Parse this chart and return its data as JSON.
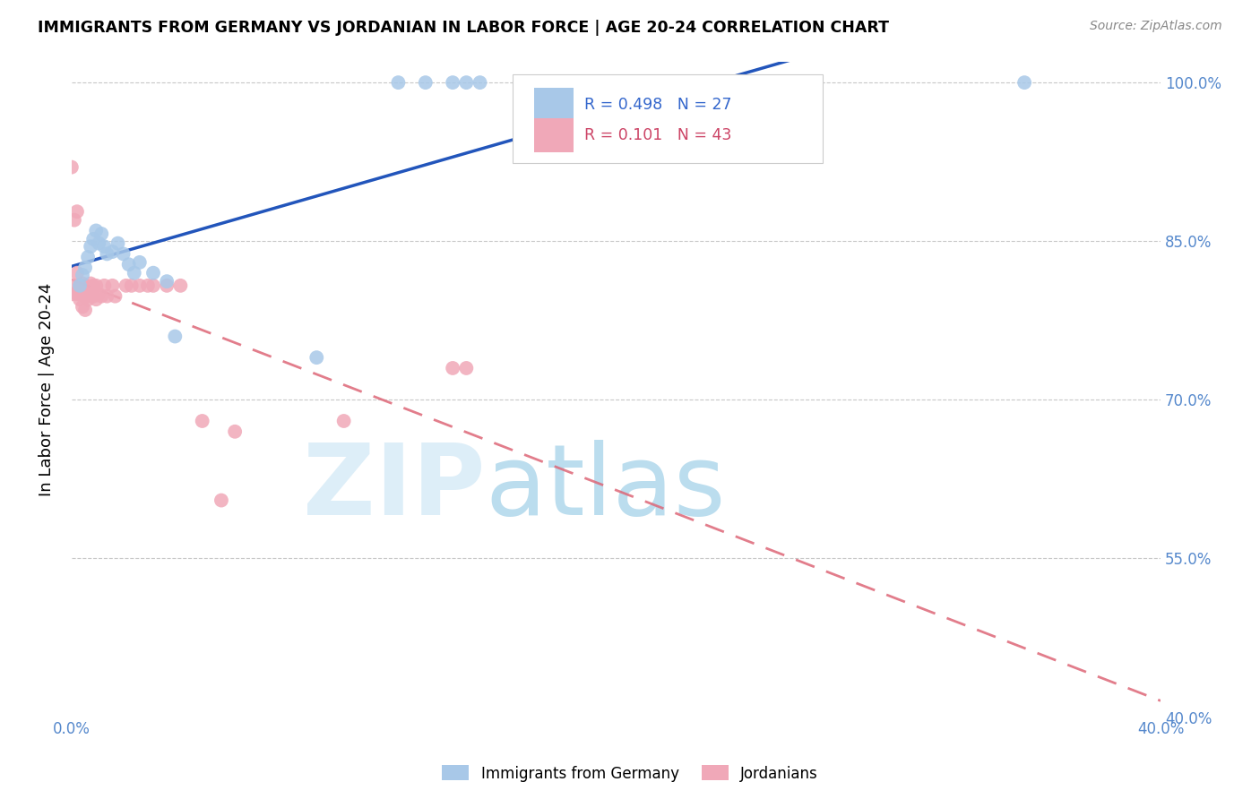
{
  "title": "IMMIGRANTS FROM GERMANY VS JORDANIAN IN LABOR FORCE | AGE 20-24 CORRELATION CHART",
  "source": "Source: ZipAtlas.com",
  "ylabel": "In Labor Force | Age 20-24",
  "xlim": [
    0.0,
    0.4
  ],
  "ylim": [
    0.4,
    1.02
  ],
  "ytick_labels": [
    "40.0%",
    "55.0%",
    "70.0%",
    "85.0%",
    "100.0%"
  ],
  "xtick_labels": [
    "0.0%",
    "",
    "",
    "",
    "",
    "",
    "",
    "",
    "40.0%"
  ],
  "blue_R": 0.498,
  "blue_N": 27,
  "pink_R": 0.101,
  "pink_N": 43,
  "blue_color": "#a8c8e8",
  "pink_color": "#f0a8b8",
  "blue_line_color": "#2255bb",
  "pink_line_color": "#dd6677",
  "legend_label_blue": "Immigrants from Germany",
  "legend_label_pink": "Jordanians",
  "blue_x": [
    0.003,
    0.004,
    0.005,
    0.006,
    0.007,
    0.008,
    0.009,
    0.01,
    0.011,
    0.012,
    0.013,
    0.015,
    0.017,
    0.019,
    0.021,
    0.023,
    0.025,
    0.03,
    0.035,
    0.09,
    0.12,
    0.13,
    0.14,
    0.145,
    0.15,
    0.35,
    0.038
  ],
  "blue_y": [
    0.808,
    0.818,
    0.825,
    0.835,
    0.845,
    0.852,
    0.86,
    0.848,
    0.857,
    0.845,
    0.838,
    0.84,
    0.848,
    0.838,
    0.828,
    0.82,
    0.83,
    0.82,
    0.812,
    0.74,
    1.0,
    1.0,
    1.0,
    1.0,
    1.0,
    1.0,
    0.76
  ],
  "pink_x": [
    0.0,
    0.0,
    0.001,
    0.001,
    0.002,
    0.002,
    0.002,
    0.003,
    0.003,
    0.003,
    0.004,
    0.004,
    0.004,
    0.005,
    0.005,
    0.005,
    0.006,
    0.006,
    0.007,
    0.007,
    0.008,
    0.008,
    0.009,
    0.009,
    0.01,
    0.011,
    0.012,
    0.013,
    0.015,
    0.016,
    0.02,
    0.022,
    0.025,
    0.028,
    0.03,
    0.035,
    0.04,
    0.048,
    0.055,
    0.06,
    0.1,
    0.14,
    0.145
  ],
  "pink_y": [
    0.92,
    0.8,
    0.87,
    0.808,
    0.878,
    0.82,
    0.8,
    0.808,
    0.8,
    0.795,
    0.81,
    0.8,
    0.788,
    0.808,
    0.798,
    0.785,
    0.806,
    0.795,
    0.81,
    0.798,
    0.808,
    0.798,
    0.808,
    0.795,
    0.8,
    0.798,
    0.808,
    0.798,
    0.808,
    0.798,
    0.808,
    0.808,
    0.808,
    0.808,
    0.808,
    0.808,
    0.808,
    0.68,
    0.605,
    0.67,
    0.68,
    0.73,
    0.73
  ]
}
